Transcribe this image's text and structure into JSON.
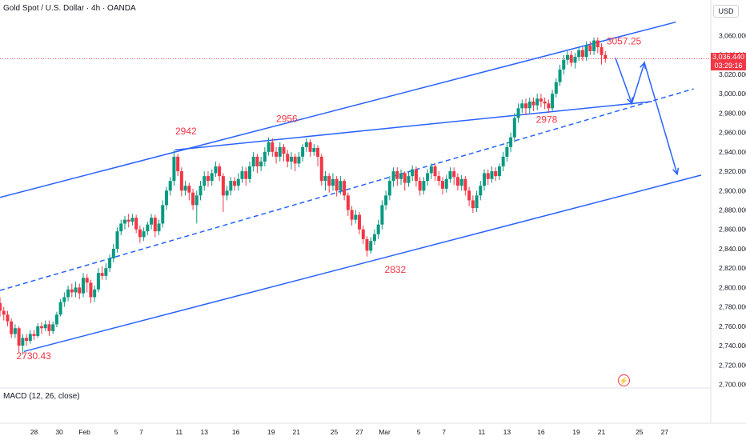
{
  "header": {
    "title": "Gold Spot / U.S. Dollar · 4h · OANDA"
  },
  "currency_label": "USD",
  "macd_label": "MACD (12, 26, close)",
  "price_tag": {
    "price": "3,036.440",
    "countdown": "03:29:16"
  },
  "colors": {
    "up": "#089981",
    "down": "#f23645",
    "line": "#2962ff",
    "annotation": "#f23645"
  },
  "chart_data": {
    "type": "candlestick",
    "y_axis": {
      "ticks": [
        2700,
        2720,
        2740,
        2760,
        2780,
        2800,
        2820,
        2840,
        2860,
        2880,
        2900,
        2920,
        2940,
        2960,
        2980,
        3000,
        3020,
        3040,
        3060
      ],
      "tick_labels": [
        "2,700.000",
        "2,720.000",
        "2,740.000",
        "2,760.000",
        "2,780.000",
        "2,800.000",
        "2,820.000",
        "2,840.000",
        "2,860.000",
        "2,880.000",
        "2,900.000",
        "2,920.000",
        "2,940.000",
        "2,960.000",
        "2,980.000",
        "3,000.000",
        "3,020.000",
        "3,040.000",
        "3,060.000"
      ]
    },
    "x_axis": {
      "labels": [
        "28",
        "30",
        "Feb",
        "5",
        "7",
        "11",
        "13",
        "16",
        "19",
        "21",
        "25",
        "27",
        "Mar",
        "5",
        "7",
        "11",
        "13",
        "16",
        "19",
        "21",
        "25",
        "27"
      ],
      "positions": [
        5.0,
        7.0,
        9.0,
        11.5,
        13.5,
        16.5,
        18.5,
        21.0,
        23.8,
        25.8,
        28.8,
        30.8,
        32.8,
        35.5,
        37.5,
        40.5,
        42.5,
        45.2,
        48.0,
        50.0,
        53.0,
        55.0
      ],
      "range": [
        2.3,
        57.9
      ]
    },
    "annotations": [
      {
        "text": "2730.43",
        "x": 3.6,
        "price": 2726
      },
      {
        "text": "2942",
        "x": 16.2,
        "price": 2958
      },
      {
        "text": "2956",
        "x": 24.2,
        "price": 2971
      },
      {
        "text": "2832",
        "x": 32.8,
        "price": 2815
      },
      {
        "text": "2978",
        "x": 44.8,
        "price": 2970
      },
      {
        "text": "3057.25",
        "x": 50.4,
        "price": 3051
      }
    ],
    "lines": [
      {
        "name": "channel-upper",
        "style": "solid",
        "points": [
          [
            2.3,
            2893
          ],
          [
            55.9,
            3074
          ]
        ]
      },
      {
        "name": "channel-lower",
        "style": "solid",
        "points": [
          [
            4.2,
            2734
          ],
          [
            57.9,
            2916
          ]
        ]
      },
      {
        "name": "channel-mid",
        "style": "dashed",
        "points": [
          [
            2.3,
            2797
          ],
          [
            57.3,
            3005
          ]
        ]
      },
      {
        "name": "trendline-top",
        "style": "solid",
        "points": [
          [
            16.2,
            2942
          ],
          [
            54.0,
            2992
          ]
        ]
      },
      {
        "name": "projection",
        "style": "arrow",
        "points": [
          [
            51.1,
            3037
          ],
          [
            52.4,
            2990
          ],
          [
            53.4,
            3032
          ],
          [
            56.0,
            2917
          ]
        ]
      }
    ],
    "candles": [
      [
        2.3,
        2784,
        2776,
        2790,
        2770
      ],
      [
        2.6,
        2776,
        2772,
        2780,
        2766
      ],
      [
        2.9,
        2772,
        2765,
        2776,
        2760
      ],
      [
        3.2,
        2765,
        2752,
        2768,
        2748
      ],
      [
        3.5,
        2752,
        2758,
        2762,
        2748
      ],
      [
        3.8,
        2758,
        2740,
        2760,
        2733
      ],
      [
        4.1,
        2740,
        2748,
        2752,
        2731
      ],
      [
        4.4,
        2748,
        2745,
        2752,
        2740
      ],
      [
        4.7,
        2745,
        2752,
        2756,
        2742
      ],
      [
        5.0,
        2752,
        2750,
        2756,
        2746
      ],
      [
        5.3,
        2750,
        2760,
        2763,
        2748
      ],
      [
        5.6,
        2760,
        2758,
        2764,
        2752
      ],
      [
        5.9,
        2758,
        2762,
        2766,
        2755
      ],
      [
        6.2,
        2762,
        2755,
        2766,
        2750
      ],
      [
        6.5,
        2755,
        2762,
        2765,
        2752
      ],
      [
        6.8,
        2762,
        2772,
        2775,
        2759
      ],
      [
        7.1,
        2772,
        2785,
        2788,
        2770
      ],
      [
        7.4,
        2785,
        2790,
        2795,
        2780
      ],
      [
        7.7,
        2790,
        2798,
        2802,
        2786
      ],
      [
        8.0,
        2798,
        2795,
        2804,
        2790
      ],
      [
        8.3,
        2795,
        2800,
        2806,
        2790
      ],
      [
        8.6,
        2800,
        2794,
        2804,
        2788
      ],
      [
        8.9,
        2794,
        2810,
        2815,
        2790
      ],
      [
        9.2,
        2810,
        2805,
        2814,
        2795
      ],
      [
        9.5,
        2805,
        2790,
        2808,
        2784
      ],
      [
        9.8,
        2790,
        2798,
        2802,
        2785
      ],
      [
        10.1,
        2798,
        2815,
        2820,
        2795
      ],
      [
        10.4,
        2815,
        2812,
        2822,
        2808
      ],
      [
        10.7,
        2812,
        2820,
        2825,
        2808
      ],
      [
        11.0,
        2820,
        2830,
        2834,
        2816
      ],
      [
        11.3,
        2830,
        2840,
        2845,
        2826
      ],
      [
        11.6,
        2840,
        2858,
        2862,
        2836
      ],
      [
        11.9,
        2858,
        2866,
        2870,
        2854
      ],
      [
        12.2,
        2866,
        2870,
        2874,
        2860
      ],
      [
        12.5,
        2870,
        2868,
        2876,
        2862
      ],
      [
        12.8,
        2868,
        2872,
        2876,
        2864
      ],
      [
        13.1,
        2872,
        2860,
        2875,
        2856
      ],
      [
        13.4,
        2860,
        2852,
        2864,
        2846
      ],
      [
        13.7,
        2852,
        2858,
        2862,
        2848
      ],
      [
        14.0,
        2858,
        2865,
        2868,
        2854
      ],
      [
        14.3,
        2865,
        2872,
        2876,
        2860
      ],
      [
        14.6,
        2872,
        2858,
        2875,
        2852
      ],
      [
        14.9,
        2858,
        2866,
        2870,
        2854
      ],
      [
        15.2,
        2866,
        2885,
        2890,
        2862
      ],
      [
        15.5,
        2885,
        2900,
        2904,
        2880
      ],
      [
        15.8,
        2900,
        2910,
        2914,
        2895
      ],
      [
        16.1,
        2910,
        2935,
        2942,
        2905
      ],
      [
        16.4,
        2935,
        2920,
        2938,
        2915
      ],
      [
        16.7,
        2920,
        2900,
        2924,
        2894
      ],
      [
        17.0,
        2900,
        2905,
        2910,
        2895
      ],
      [
        17.3,
        2905,
        2898,
        2908,
        2890
      ],
      [
        17.6,
        2898,
        2885,
        2902,
        2880
      ],
      [
        17.9,
        2885,
        2895,
        2900,
        2866
      ],
      [
        18.2,
        2895,
        2905,
        2910,
        2890
      ],
      [
        18.5,
        2905,
        2915,
        2920,
        2900
      ],
      [
        18.8,
        2915,
        2910,
        2920,
        2904
      ],
      [
        19.1,
        2910,
        2918,
        2922,
        2905
      ],
      [
        19.4,
        2918,
        2925,
        2930,
        2914
      ],
      [
        19.7,
        2925,
        2915,
        2928,
        2910
      ],
      [
        20.0,
        2915,
        2895,
        2918,
        2878
      ],
      [
        20.3,
        2895,
        2900,
        2905,
        2890
      ],
      [
        20.6,
        2900,
        2910,
        2914,
        2895
      ],
      [
        20.9,
        2910,
        2905,
        2914,
        2900
      ],
      [
        21.2,
        2905,
        2912,
        2918,
        2900
      ],
      [
        21.5,
        2912,
        2920,
        2925,
        2908
      ],
      [
        21.8,
        2920,
        2912,
        2924,
        2905
      ],
      [
        22.1,
        2912,
        2925,
        2930,
        2908
      ],
      [
        22.4,
        2925,
        2935,
        2940,
        2920
      ],
      [
        22.7,
        2935,
        2925,
        2938,
        2918
      ],
      [
        23.0,
        2925,
        2930,
        2935,
        2920
      ],
      [
        23.3,
        2930,
        2940,
        2945,
        2925
      ],
      [
        23.6,
        2940,
        2950,
        2955,
        2936
      ],
      [
        23.9,
        2950,
        2940,
        2954,
        2935
      ],
      [
        24.2,
        2940,
        2935,
        2945,
        2928
      ],
      [
        24.5,
        2935,
        2945,
        2950,
        2930
      ],
      [
        24.8,
        2945,
        2938,
        2948,
        2930
      ],
      [
        25.1,
        2938,
        2930,
        2942,
        2924
      ],
      [
        25.4,
        2930,
        2935,
        2940,
        2922
      ],
      [
        25.7,
        2935,
        2928,
        2938,
        2920
      ],
      [
        26.0,
        2928,
        2935,
        2940,
        2924
      ],
      [
        26.3,
        2935,
        2945,
        2948,
        2930
      ],
      [
        26.6,
        2945,
        2950,
        2954,
        2940
      ],
      [
        26.9,
        2950,
        2940,
        2953,
        2935
      ],
      [
        27.2,
        2940,
        2944,
        2948,
        2936
      ],
      [
        27.5,
        2944,
        2935,
        2947,
        2925
      ],
      [
        27.8,
        2935,
        2910,
        2938,
        2905
      ],
      [
        28.1,
        2910,
        2915,
        2920,
        2900
      ],
      [
        28.4,
        2915,
        2905,
        2918,
        2898
      ],
      [
        28.7,
        2905,
        2912,
        2918,
        2900
      ],
      [
        29.0,
        2912,
        2900,
        2915,
        2894
      ],
      [
        29.3,
        2900,
        2910,
        2915,
        2896
      ],
      [
        29.6,
        2910,
        2895,
        2912,
        2890
      ],
      [
        29.9,
        2895,
        2880,
        2898,
        2874
      ],
      [
        30.2,
        2880,
        2870,
        2884,
        2864
      ],
      [
        30.5,
        2870,
        2875,
        2880,
        2866
      ],
      [
        30.8,
        2875,
        2860,
        2878,
        2855
      ],
      [
        31.1,
        2860,
        2850,
        2864,
        2845
      ],
      [
        31.4,
        2850,
        2838,
        2853,
        2832
      ],
      [
        31.7,
        2838,
        2848,
        2852,
        2835
      ],
      [
        32.0,
        2848,
        2855,
        2860,
        2844
      ],
      [
        32.3,
        2855,
        2865,
        2870,
        2850
      ],
      [
        32.6,
        2865,
        2885,
        2890,
        2860
      ],
      [
        32.9,
        2885,
        2895,
        2900,
        2880
      ],
      [
        33.2,
        2895,
        2910,
        2915,
        2890
      ],
      [
        33.5,
        2910,
        2920,
        2924,
        2904
      ],
      [
        33.8,
        2920,
        2912,
        2924,
        2905
      ],
      [
        34.1,
        2912,
        2918,
        2922,
        2906
      ],
      [
        34.4,
        2918,
        2908,
        2920,
        2900
      ],
      [
        34.7,
        2908,
        2915,
        2920,
        2904
      ],
      [
        35.0,
        2915,
        2922,
        2926,
        2910
      ],
      [
        35.3,
        2922,
        2910,
        2925,
        2904
      ],
      [
        35.6,
        2910,
        2900,
        2914,
        2895
      ],
      [
        35.9,
        2900,
        2910,
        2914,
        2896
      ],
      [
        36.2,
        2910,
        2918,
        2922,
        2905
      ],
      [
        36.5,
        2918,
        2925,
        2928,
        2912
      ],
      [
        36.8,
        2925,
        2915,
        2928,
        2910
      ],
      [
        37.1,
        2915,
        2910,
        2920,
        2905
      ],
      [
        37.4,
        2910,
        2902,
        2914,
        2896
      ],
      [
        37.7,
        2902,
        2912,
        2916,
        2898
      ],
      [
        38.0,
        2912,
        2920,
        2924,
        2908
      ],
      [
        38.3,
        2920,
        2914,
        2924,
        2906
      ],
      [
        38.6,
        2914,
        2905,
        2918,
        2900
      ],
      [
        38.9,
        2905,
        2912,
        2916,
        2900
      ],
      [
        39.2,
        2912,
        2900,
        2915,
        2895
      ],
      [
        39.5,
        2900,
        2890,
        2904,
        2884
      ],
      [
        39.8,
        2890,
        2882,
        2895,
        2877
      ],
      [
        40.1,
        2882,
        2895,
        2900,
        2878
      ],
      [
        40.4,
        2895,
        2905,
        2910,
        2890
      ],
      [
        40.7,
        2905,
        2918,
        2922,
        2900
      ],
      [
        41.0,
        2918,
        2912,
        2922,
        2906
      ],
      [
        41.3,
        2912,
        2920,
        2925,
        2908
      ],
      [
        41.6,
        2920,
        2915,
        2924,
        2910
      ],
      [
        41.9,
        2915,
        2925,
        2928,
        2911
      ],
      [
        42.2,
        2925,
        2935,
        2940,
        2920
      ],
      [
        42.5,
        2935,
        2945,
        2950,
        2930
      ],
      [
        42.8,
        2945,
        2955,
        2960,
        2940
      ],
      [
        43.1,
        2955,
        2975,
        2980,
        2950
      ],
      [
        43.4,
        2975,
        2985,
        2990,
        2970
      ],
      [
        43.7,
        2985,
        2990,
        2994,
        2980
      ],
      [
        44.0,
        2990,
        2985,
        2995,
        2978
      ],
      [
        44.3,
        2985,
        2992,
        2996,
        2980
      ],
      [
        44.6,
        2992,
        2988,
        2996,
        2982
      ],
      [
        44.9,
        2988,
        2995,
        3000,
        2983
      ],
      [
        45.2,
        2995,
        2992,
        3000,
        2986
      ],
      [
        45.5,
        2992,
        2990,
        2996,
        2984
      ],
      [
        45.8,
        2990,
        2985,
        2994,
        2980
      ],
      [
        46.1,
        2985,
        3000,
        3004,
        2982
      ],
      [
        46.4,
        3000,
        3012,
        3016,
        2996
      ],
      [
        46.7,
        3012,
        3025,
        3030,
        3008
      ],
      [
        47.0,
        3025,
        3035,
        3040,
        3020
      ],
      [
        47.3,
        3035,
        3040,
        3044,
        3030
      ],
      [
        47.6,
        3040,
        3032,
        3044,
        3028
      ],
      [
        47.9,
        3032,
        3038,
        3042,
        3026
      ],
      [
        48.2,
        3038,
        3045,
        3048,
        3034
      ],
      [
        48.5,
        3045,
        3038,
        3048,
        3034
      ],
      [
        48.8,
        3038,
        3050,
        3054,
        3034
      ],
      [
        49.1,
        3050,
        3044,
        3054,
        3040
      ],
      [
        49.4,
        3044,
        3055,
        3058,
        3040
      ],
      [
        49.7,
        3055,
        3048,
        3058,
        3042
      ],
      [
        50.0,
        3048,
        3040,
        3052,
        3030
      ],
      [
        50.3,
        3040,
        3036,
        3044,
        3032
      ]
    ]
  }
}
